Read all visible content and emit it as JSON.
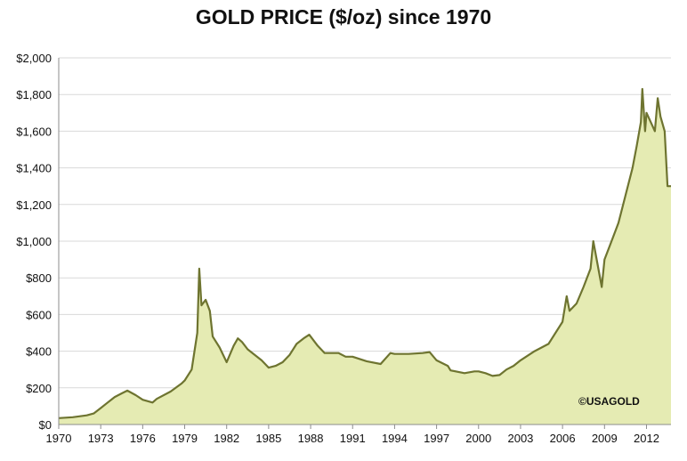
{
  "chart_data": {
    "type": "area",
    "title": "GOLD PRICE ($/oz) since 1970",
    "watermark": "©USAGOLD",
    "xlabel": "",
    "ylabel": "",
    "xlim": [
      1970,
      2013.75
    ],
    "ylim": [
      0,
      2000
    ],
    "grid": true,
    "x_ticks": [
      1970,
      1973,
      1976,
      1979,
      1982,
      1985,
      1988,
      1991,
      1994,
      1997,
      2000,
      2003,
      2006,
      2009,
      2012
    ],
    "x_tick_labels": [
      "1970",
      "1973",
      "1976",
      "1979",
      "1982",
      "1985",
      "1988",
      "1991",
      "1994",
      "1997",
      "2000",
      "2003",
      "2006",
      "2009",
      "2012"
    ],
    "y_ticks": [
      0,
      200,
      400,
      600,
      800,
      1000,
      1200,
      1400,
      1600,
      1800,
      2000
    ],
    "y_tick_labels": [
      "$0",
      "$200",
      "$400",
      "$600",
      "$800",
      "$1,000",
      "$1,200",
      "$1,400",
      "$1,600",
      "$1,800",
      "$2,000"
    ],
    "colors": {
      "fill": "#e5ebb3",
      "line": "#6e7430",
      "grid": "#d9d9d9",
      "axis": "#8c8c8c"
    },
    "series": [
      {
        "x": [
          1970,
          1971,
          1972,
          1972.5,
          1973,
          1973.5,
          1974,
          1974.5,
          1974.9,
          1975.5,
          1976,
          1976.7,
          1977,
          1978,
          1978.8,
          1979,
          1979.5,
          1979.9,
          1980.04,
          1980.2,
          1980.5,
          1980.8,
          1981,
          1981.5,
          1982,
          1982.5,
          1982.8,
          1983.1,
          1983.5,
          1984,
          1984.5,
          1985,
          1985.5,
          1986,
          1986.5,
          1987,
          1987.5,
          1987.9,
          1988.5,
          1989,
          1990,
          1990.5,
          1991,
          1992,
          1993,
          1993.7,
          1994,
          1995,
          1996,
          1996.5,
          1997,
          1997.8,
          1998,
          1999,
          1999.7,
          2000,
          2000.5,
          2001,
          2001.5,
          2002,
          2002.5,
          2003,
          2004,
          2005,
          2006,
          2006.3,
          2006.5,
          2007,
          2007.5,
          2008,
          2008.2,
          2008.8,
          2009,
          2009.5,
          2010,
          2010.5,
          2011,
          2011.3,
          2011.6,
          2011.7,
          2011.9,
          2012,
          2012.3,
          2012.6,
          2012.8,
          2013,
          2013.3,
          2013.5,
          2013.75
        ],
        "y": [
          35,
          40,
          50,
          60,
          90,
          120,
          150,
          170,
          185,
          160,
          135,
          120,
          140,
          180,
          225,
          240,
          300,
          500,
          850,
          650,
          680,
          620,
          480,
          420,
          340,
          430,
          470,
          450,
          410,
          380,
          350,
          310,
          320,
          340,
          380,
          440,
          470,
          490,
          430,
          390,
          390,
          370,
          370,
          345,
          330,
          390,
          385,
          385,
          390,
          395,
          350,
          320,
          295,
          280,
          290,
          290,
          280,
          265,
          270,
          300,
          320,
          350,
          400,
          440,
          560,
          700,
          620,
          660,
          750,
          850,
          1000,
          750,
          900,
          1000,
          1100,
          1250,
          1400,
          1520,
          1650,
          1830,
          1600,
          1700,
          1650,
          1600,
          1780,
          1680,
          1600,
          1300,
          1300
        ]
      }
    ]
  }
}
